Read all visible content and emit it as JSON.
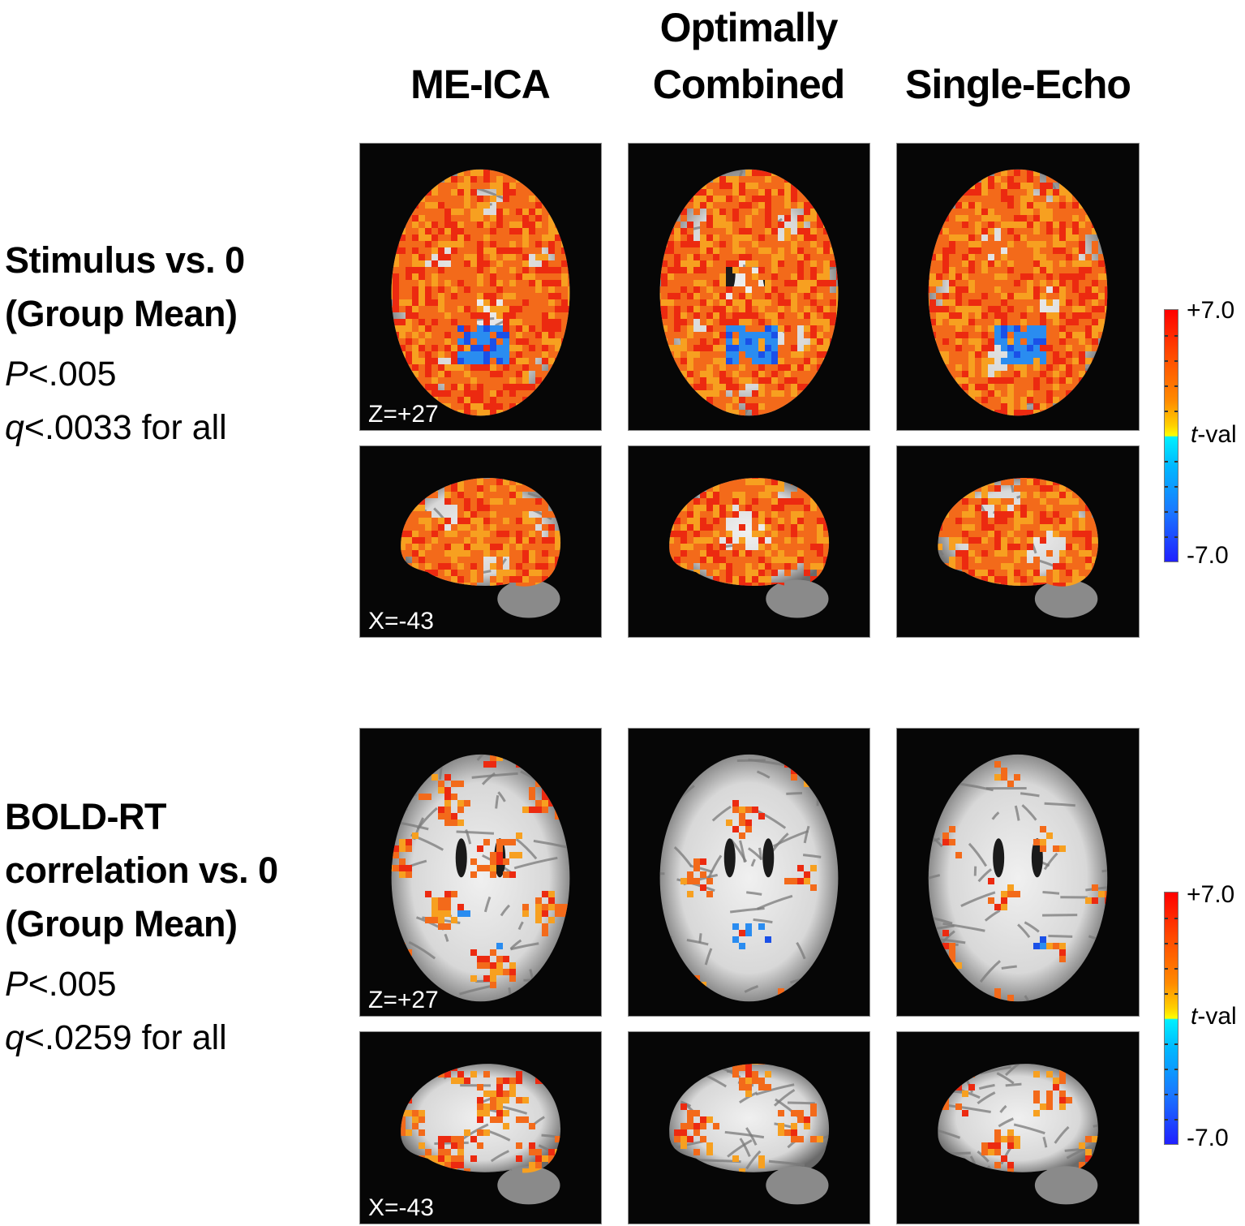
{
  "column_headers": [
    {
      "lines": [
        "ME-ICA"
      ]
    },
    {
      "lines": [
        "Optimally",
        "Combined"
      ]
    },
    {
      "lines": [
        "Single-Echo"
      ]
    }
  ],
  "rows": [
    {
      "title_lines": [
        "Stimulus vs. 0",
        "(Group Mean)"
      ],
      "stat_p": {
        "symbol": "P",
        "text": "<.005"
      },
      "stat_q": {
        "symbol": "q",
        "text": "<.0033 for all"
      },
      "axial_coord_label": "Z=+27",
      "sagittal_coord_label": "X=-43",
      "colorbar": {
        "max_label": "+7.0",
        "mid_label_symbol": "t",
        "mid_label_text": "-val",
        "min_label": "-7.0"
      }
    },
    {
      "title_lines": [
        "BOLD-RT",
        "correlation vs. 0",
        "(Group Mean)"
      ],
      "stat_p": {
        "symbol": "P",
        "text": "<.005"
      },
      "stat_q": {
        "symbol": "q",
        "text": "<.0259 for all"
      },
      "axial_coord_label": "Z=+27",
      "sagittal_coord_label": "X=-43",
      "colorbar": {
        "max_label": "+7.0",
        "mid_label_symbol": "t",
        "mid_label_text": "-val",
        "min_label": "-7.0"
      }
    }
  ],
  "colors": {
    "panel_bg": "#060606",
    "activation_high": "#ec2a10",
    "activation_mid": "#f36a1a",
    "activation_low": "#f7a020",
    "deactivation": "#2a8cf0",
    "deactivation_strong": "#1a50e8",
    "colorbar_top": "#ff0000",
    "colorbar_mid_pos": "#ffff00",
    "colorbar_mid_neg": "#00f0ff",
    "colorbar_bottom": "#2020ff"
  },
  "colorbar_range": {
    "min": -7.0,
    "max": 7.0,
    "label": "t-val"
  },
  "activation_density": {
    "row1_axial": [
      0.85,
      0.8,
      0.82
    ],
    "row1_sagittal": [
      0.75,
      0.7,
      0.72
    ],
    "row2_axial": [
      0.3,
      0.22,
      0.18
    ],
    "row2_sagittal": [
      0.4,
      0.3,
      0.28
    ]
  }
}
